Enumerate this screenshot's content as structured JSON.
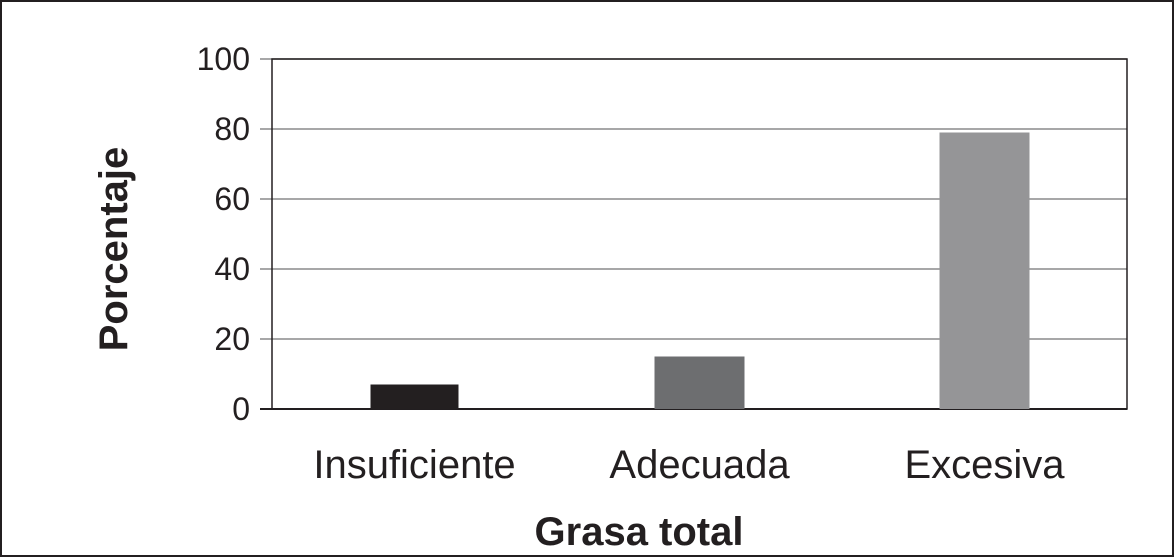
{
  "chart_data": {
    "type": "bar",
    "title": "",
    "xlabel": "Grasa total",
    "ylabel": "Porcentaje",
    "ylim": [
      0,
      100
    ],
    "yticks": [
      0,
      20,
      40,
      60,
      80,
      100
    ],
    "grid": true,
    "legend": "none",
    "categories": [
      "Insuficiente",
      "Adecuada",
      "Excesiva"
    ],
    "values": [
      7,
      15,
      79
    ],
    "colors": [
      "#231f20",
      "#6d6e70",
      "#959597"
    ]
  }
}
